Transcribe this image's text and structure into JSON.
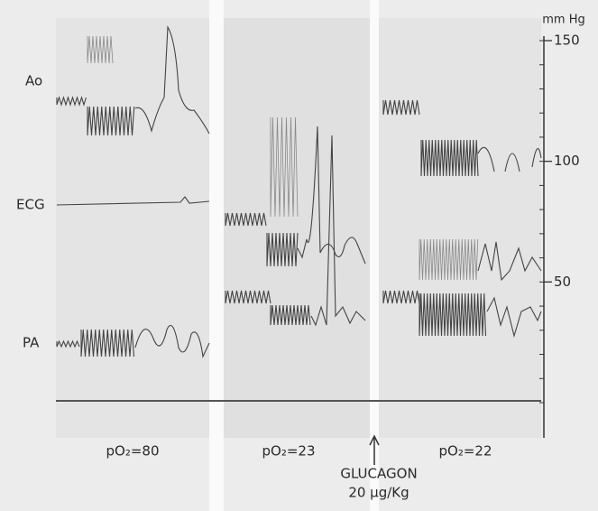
{
  "figure": {
    "trace_labels": [
      "Ao",
      "ECG",
      "PA"
    ],
    "axis": {
      "unit": "mm Hg",
      "ylim": [
        0,
        150
      ],
      "ticks": [
        50,
        100,
        150
      ]
    },
    "panels": [
      "pO₂=80",
      "pO₂=23",
      "pO₂=22"
    ],
    "annotation": {
      "line1": "GLUCAGON",
      "line2": "20 µg/Kg"
    }
  }
}
